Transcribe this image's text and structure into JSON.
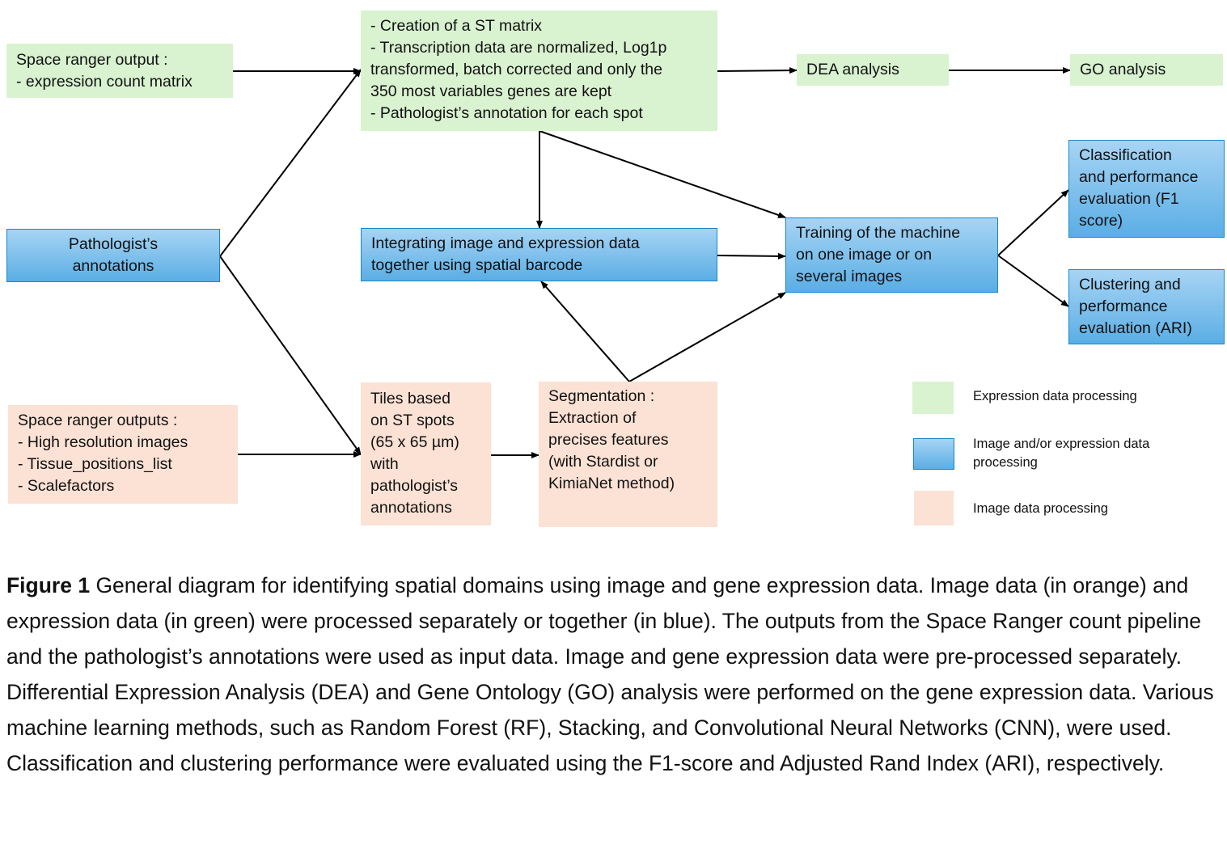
{
  "nodes": {
    "space_ranger_output": [
      "Space ranger output :",
      "- expression count matrix"
    ],
    "st_matrix": [
      "- Creation of a ST matrix",
      "- Transcription data are normalized, Log1p",
      "transformed, batch corrected and only the",
      "350 most variables genes are kept",
      "- Pathologist’s annotation for each spot"
    ],
    "dea": [
      "DEA analysis"
    ],
    "go": [
      "GO analysis"
    ],
    "pathologist_annotations": [
      "Pathologist’s",
      "annotations"
    ],
    "integrating": [
      "Integrating image and expression data",
      "together using spatial barcode"
    ],
    "training": [
      "Training of the machine",
      "on one image or on",
      "several images"
    ],
    "classification": [
      "Classification",
      "and performance",
      "evaluation (F1",
      "score)"
    ],
    "clustering": [
      "Clustering and",
      "performance",
      "evaluation (ARI)"
    ],
    "space_ranger_outputs": [
      "Space ranger outputs :",
      "- High resolution images",
      "- Tissue_positions_list",
      "- Scalefactors"
    ],
    "tiles": [
      "Tiles based",
      "on ST spots",
      "(65 x 65 µm)",
      "with",
      "pathologist’s",
      "annotations"
    ],
    "segmentation": [
      "Segmentation :",
      "Extraction of",
      "precises features",
      "(with Stardist or",
      "KimiaNet method)"
    ]
  },
  "legend": [
    {
      "label": [
        "Expression data processing"
      ],
      "color": "#d9f2d0"
    },
    {
      "label": [
        "Image and/or expression data",
        "processing"
      ],
      "color": "#5aaee5"
    },
    {
      "label": [
        "Image data processing"
      ],
      "color": "#fbe2d5"
    }
  ],
  "caption": {
    "label": "Figure 1",
    "text": " General diagram for identifying spatial domains using image and gene expression data. Image data (in orange) and expression data (in green) were processed separately or together (in blue). The outputs from the Space Ranger count pipeline and the pathologist’s annotations were used as input data. Image and gene expression data were pre-processed separately. Differential Expression Analysis (DEA) and Gene Ontology (GO) analysis were performed on the gene expression data. Various machine learning methods, such as Random Forest (RF), Stacking, and Convolutional Neural Networks (CNN), were used. Classification and clustering performance were evaluated using the F1-score and Adjusted Rand Index (ARI), respectively."
  },
  "colors": {
    "expression": "#d9f2d0",
    "image_and_expression": "#5aaee5",
    "image": "#fbe2d5",
    "arrow": "#000000"
  }
}
